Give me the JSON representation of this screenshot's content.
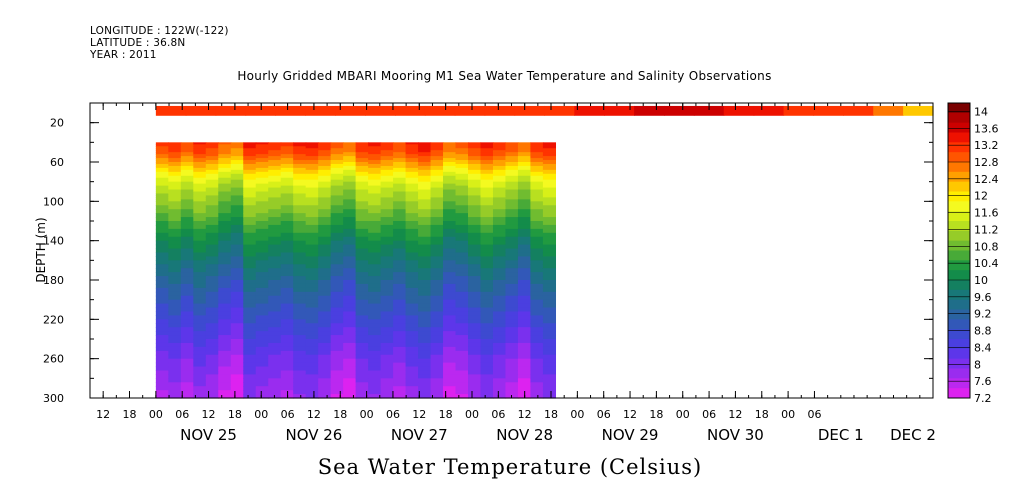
{
  "header": {
    "longitude": "LONGITUDE : 122W(-122)",
    "latitude": "LATITUDE : 36.8N",
    "year": "YEAR : 2011"
  },
  "chart_data": {
    "type": "heatmap",
    "title": "Hourly Gridded MBARI Mooring M1 Sea Water Temperature and Salinity Observations",
    "xlabel": "Sea Water Temperature (Celsius)",
    "ylabel": "DEPTH (m)",
    "x_range": [
      "2011-11-24T09:00",
      "2011-12-02T09:00"
    ],
    "ylim": [
      300,
      0
    ],
    "y_ticks": [
      20,
      60,
      100,
      140,
      180,
      220,
      260,
      300
    ],
    "x_hour_ticks": [
      "12",
      "18",
      "00",
      "06",
      "12",
      "18",
      "00",
      "06",
      "12",
      "18",
      "00",
      "06",
      "12",
      "18",
      "00",
      "06",
      "12",
      "18",
      "00",
      "06",
      "12",
      "18",
      "00",
      "06",
      "12",
      "18",
      "00",
      "06"
    ],
    "x_day_labels": [
      "NOV 25",
      "NOV 26",
      "NOV 27",
      "NOV 28",
      "NOV 29",
      "NOV 30",
      "DEC  1",
      "DEC  2"
    ],
    "colorbar": {
      "levels": [
        "14",
        "13.6",
        "13.2",
        "12.8",
        "12.4",
        "12",
        "11.6",
        "11.2",
        "10.8",
        "10.4",
        "10",
        "9.6",
        "9.2",
        "8.8",
        "8.4",
        "8",
        "7.6",
        "7.2"
      ],
      "colors": [
        "#7a0000",
        "#b00000",
        "#cc0000",
        "#ee1100",
        "#ff3300",
        "#ff5500",
        "#ff7700",
        "#ffa000",
        "#ffc800",
        "#ffee00",
        "#f4fa20",
        "#d8f018",
        "#b8e020",
        "#96cc28",
        "#70bc30",
        "#48aa38",
        "#219a40",
        "#138c4a",
        "#148060",
        "#187878",
        "#1f6e8a",
        "#2a63a0",
        "#3258b8",
        "#3d4ad0",
        "#4a3fe0",
        "#5d36ea",
        "#7a30ee",
        "#9a2cef",
        "#bb28f0",
        "#dd22f0"
      ],
      "min": 7.2,
      "max": 14.2
    },
    "surface_series": {
      "depth": 10,
      "x_start": "2011-11-25T00:00",
      "x_end": "2011-12-02T09:00",
      "values": [
        13.1,
        13.1,
        13.2,
        13.1,
        13.2,
        13.2,
        13.1,
        13.2,
        13.1,
        13.2,
        13.2,
        13.1,
        13.2,
        13.2,
        13.3,
        13.4,
        13.6,
        13.7,
        13.6,
        13.4,
        13.3,
        13.2,
        13.2,
        13.1,
        12.6,
        12.2
      ]
    },
    "profile_series": {
      "x_start": "2011-11-25T00:00",
      "x_end": "2011-11-28T19:00",
      "depths": [
        40,
        50,
        60,
        70,
        80,
        90,
        100,
        120,
        140,
        160,
        180,
        200,
        220,
        240,
        260,
        280,
        300
      ],
      "profile": [
        13.1,
        12.9,
        12.4,
        11.9,
        11.5,
        11.2,
        11.0,
        10.5,
        10.0,
        9.6,
        9.2,
        8.9,
        8.6,
        8.3,
        8.0,
        7.8,
        7.6
      ],
      "column_offsets": [
        0.0,
        0.15,
        -0.1,
        0.2,
        0.05,
        -0.25,
        -0.4,
        0.3,
        0.2,
        0.1,
        0.0,
        0.25,
        0.3,
        0.1,
        -0.2,
        -0.35,
        0.15,
        0.25,
        0.1,
        -0.05,
        0.2,
        0.35,
        0.1,
        -0.3,
        -0.2,
        0.05,
        0.3,
        0.1,
        -0.1,
        -0.35,
        0.15,
        0.3
      ]
    }
  }
}
